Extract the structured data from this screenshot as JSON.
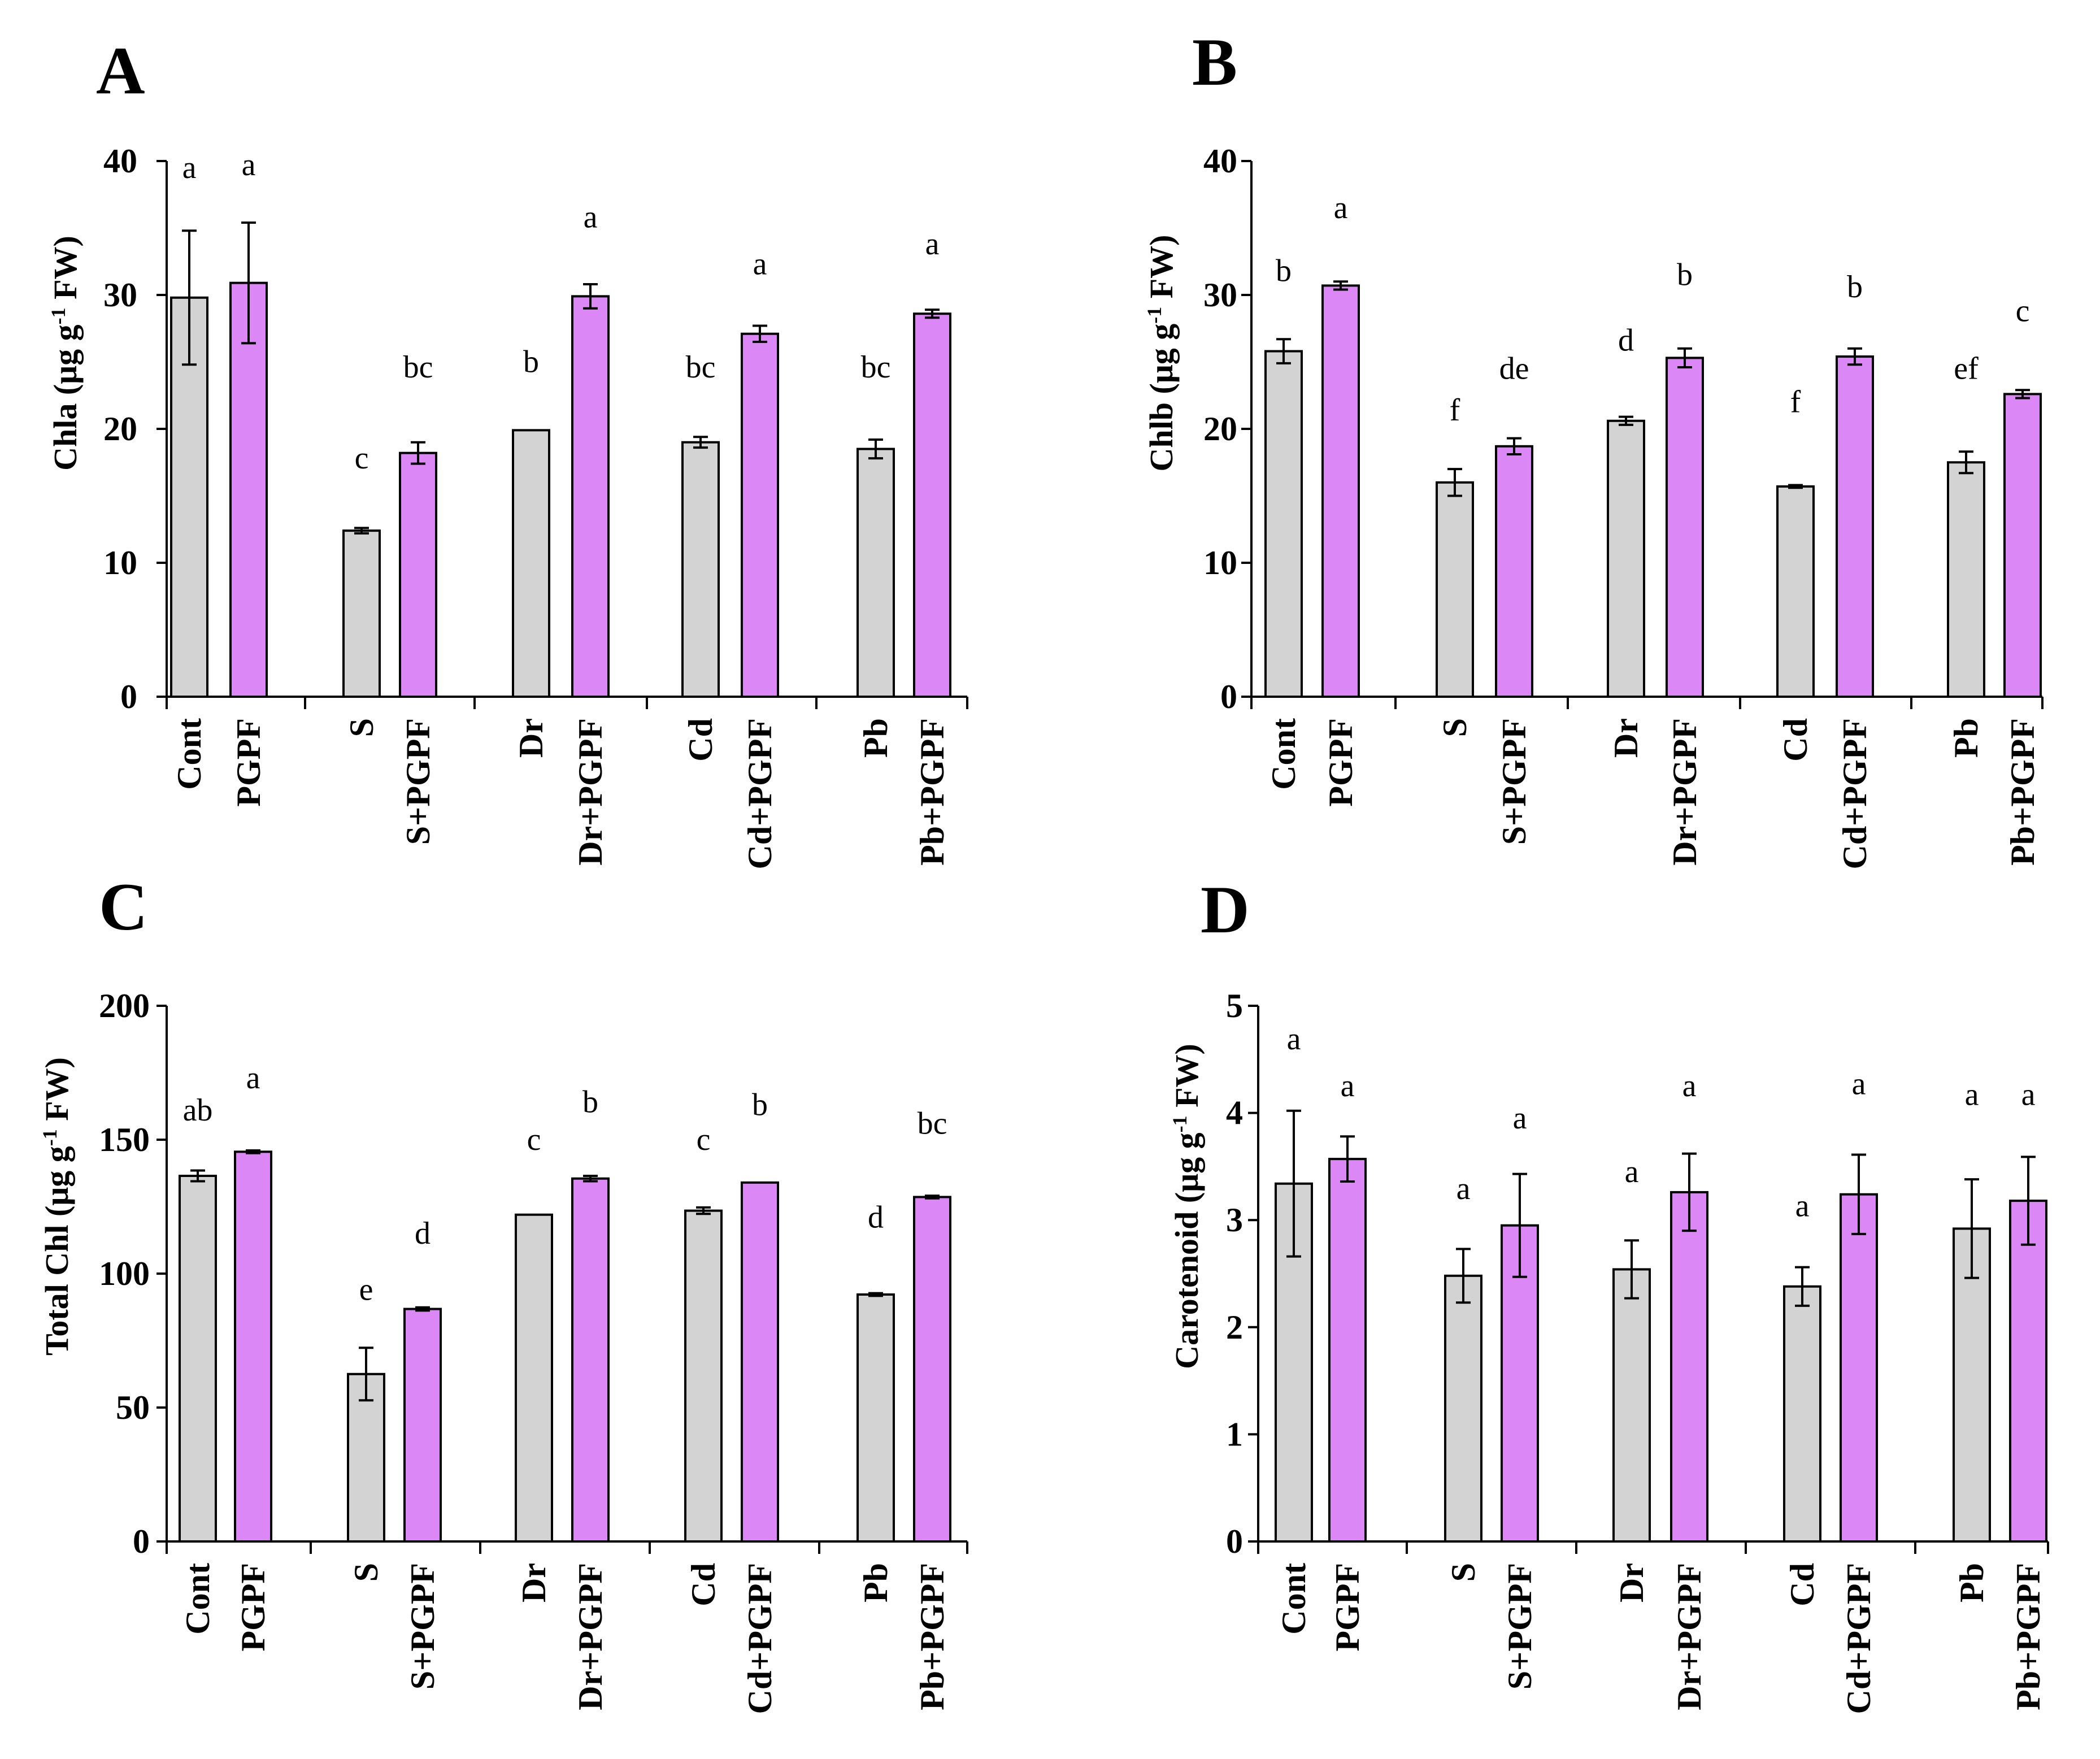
{
  "colors": {
    "control": "#d3d3d3",
    "pgpf": "#db87f5",
    "outline": "#000000"
  },
  "chart_data": [
    {
      "type": "bar",
      "panel": "A",
      "ylabel": {
        "main": "Chla (μg g",
        "sup": "-1",
        "tail": " FW)"
      },
      "ylim": [
        0,
        40
      ],
      "yticks": [
        0,
        10,
        20,
        30,
        40
      ],
      "categories": [
        "Cont",
        "PGPF",
        "S",
        "S+PGPF",
        "Dr",
        "Dr+PGPF",
        "Cd",
        "Cd+PGPF",
        "Pb",
        "Pb+PGPF"
      ],
      "values": [
        29.8,
        30.9,
        12.4,
        18.2,
        19.9,
        29.9,
        19.0,
        27.1,
        18.5,
        28.6
      ],
      "errors": [
        5.0,
        4.5,
        0.2,
        0.8,
        0.0,
        0.9,
        0.4,
        0.6,
        0.7,
        0.3
      ],
      "letters": [
        "a",
        "a",
        "c",
        "bc",
        "b",
        "a",
        "bc",
        "a",
        "bc",
        "a"
      ],
      "letter_levels": [
        39.5,
        39.7,
        17.8,
        24.6,
        25.0,
        35.8,
        24.6,
        32.3,
        24.6,
        33.8
      ]
    },
    {
      "type": "bar",
      "panel": "B",
      "ylabel": {
        "main": "Chlb (μg g",
        "sup": "-1",
        "tail": " FW)"
      },
      "ylim": [
        0,
        40
      ],
      "yticks": [
        0,
        10,
        20,
        30,
        40
      ],
      "categories": [
        "Cont",
        "PGPF",
        "S",
        "S+PGPF",
        "Dr",
        "Dr+PGPF",
        "Cd",
        "Cd+PGPF",
        "Pb",
        "Pb+PGPF"
      ],
      "values": [
        25.8,
        30.7,
        16.0,
        18.7,
        20.6,
        25.3,
        15.7,
        25.4,
        17.5,
        22.6
      ],
      "errors": [
        0.9,
        0.3,
        1.0,
        0.6,
        0.3,
        0.7,
        0.1,
        0.6,
        0.8,
        0.3
      ],
      "letters": [
        "b",
        "a",
        "f",
        "de",
        "d",
        "b",
        "f",
        "b",
        "ef",
        "c"
      ],
      "letter_levels": [
        31.8,
        36.5,
        21.4,
        24.5,
        26.6,
        31.5,
        22.0,
        30.6,
        24.5,
        28.8
      ]
    },
    {
      "type": "bar",
      "panel": "C",
      "ylabel": {
        "main": "Total Chl (μg g",
        "sup": "-1",
        "tail": " FW)"
      },
      "ylim": [
        0,
        200
      ],
      "yticks": [
        0,
        50,
        100,
        150,
        200
      ],
      "categories": [
        "Cont",
        "PGPF",
        "S",
        "S+PGPF",
        "Dr",
        "Dr+PGPF",
        "Cd",
        "Cd+PGPF",
        "Pb",
        "Pb+PGPF"
      ],
      "values": [
        136.5,
        145.5,
        62.5,
        86.8,
        122.0,
        135.5,
        123.5,
        134.0,
        92.2,
        128.6
      ],
      "errors": [
        2.0,
        0.5,
        9.8,
        0.6,
        0.0,
        1.0,
        1.2,
        0.0,
        0.5,
        0.5
      ],
      "letters": [
        "ab",
        "a",
        "e",
        "d",
        "c",
        "b",
        "c",
        "b",
        "d",
        "bc"
      ],
      "letter_levels": [
        161,
        173,
        94,
        115,
        150,
        164,
        150,
        163,
        121,
        156
      ]
    },
    {
      "type": "bar",
      "panel": "D",
      "ylabel": {
        "main": "Carotenoid (μg g",
        "sup": "-1",
        "tail": " FW)"
      },
      "ylim": [
        0,
        5
      ],
      "yticks": [
        0,
        1,
        2,
        3,
        4,
        5
      ],
      "categories": [
        "Cont",
        "PGPF",
        "S",
        "S+PGPF",
        "Dr",
        "Dr+PGPF",
        "Cd",
        "Cd+PGPF",
        "Pb",
        "Pb+PGPF"
      ],
      "values": [
        3.34,
        3.57,
        2.48,
        2.95,
        2.54,
        3.26,
        2.38,
        3.24,
        2.92,
        3.18
      ],
      "errors": [
        0.68,
        0.21,
        0.25,
        0.48,
        0.27,
        0.36,
        0.18,
        0.37,
        0.46,
        0.41
      ],
      "letters": [
        "a",
        "a",
        "a",
        "a",
        "a",
        "a",
        "a",
        "a",
        "a",
        "a"
      ],
      "letter_levels": [
        4.69,
        4.25,
        3.29,
        3.95,
        3.45,
        4.25,
        3.13,
        4.27,
        4.17,
        4.17
      ]
    }
  ]
}
